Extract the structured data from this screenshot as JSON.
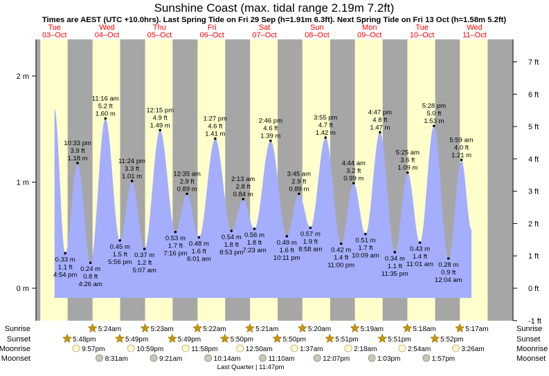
{
  "title": "Sunshine Coast (max. tidal range 2.19m 7.2ft)",
  "subtitle": "Times are AEST (UTC +10.0hrs). Last Spring Tide on Fri 29 Sep (h=1.91m 6.3ft). Next Spring Tide on Fri 13 Oct (h=1.58m 5.2ft)",
  "colors": {
    "day": "#ffffcc",
    "night": "#a6a6a6",
    "tide_fill": "#a4aefc",
    "day_label": "#ff0000",
    "sun_icon": "#c8960a",
    "moon_icon": "#fffbd0",
    "moonset_icon": "#c8c8b8"
  },
  "chart_data": {
    "type": "area",
    "y_unit_left": "m",
    "y_unit_right": "ft",
    "ylim_m": [
      -0.305,
      2.35
    ],
    "left_ticks": [
      "0 m",
      "1 m",
      "2 m"
    ],
    "right_ticks": [
      "-1 ft",
      "0 ft",
      "1 ft",
      "2 ft",
      "3 ft",
      "4 ft",
      "5 ft",
      "6 ft",
      "7 ft"
    ],
    "days": [
      {
        "dow": "Tue",
        "date": "03–Oct"
      },
      {
        "dow": "Wed",
        "date": "04–Oct"
      },
      {
        "dow": "Thu",
        "date": "05–Oct"
      },
      {
        "dow": "Fri",
        "date": "06–Oct"
      },
      {
        "dow": "Sat",
        "date": "07–Oct"
      },
      {
        "dow": "Sun",
        "date": "08–Oct"
      },
      {
        "dow": "Mon",
        "date": "09–Oct"
      },
      {
        "dow": "Tue",
        "date": "10–Oct"
      },
      {
        "dow": "Wed",
        "date": "11–Oct"
      }
    ],
    "tides": [
      {
        "time": "4:54 pm",
        "m": "0.33 m",
        "ft": "1.1 ft",
        "h": 0.33,
        "hours": 16.9,
        "low": true
      },
      {
        "time": "10:33 pm",
        "m": "1.18 m",
        "ft": "3.9 ft",
        "h": 1.18,
        "hours": 22.55,
        "low": false
      },
      {
        "time": "4:26 am",
        "m": "0.24 m",
        "ft": "0.8 ft",
        "h": 0.24,
        "hours": 28.43,
        "low": true
      },
      {
        "time": "11:16 am",
        "m": "1.60 m",
        "ft": "5.2 ft",
        "h": 1.6,
        "hours": 35.27,
        "low": false
      },
      {
        "time": "5:56 pm",
        "m": "0.45 m",
        "ft": "1.5 ft",
        "h": 0.45,
        "hours": 41.93,
        "low": true
      },
      {
        "time": "11:24 pm",
        "m": "1.01 m",
        "ft": "3.3 ft",
        "h": 1.01,
        "hours": 47.4,
        "low": false
      },
      {
        "time": "5:07 am",
        "m": "0.37 m",
        "ft": "1.2 ft",
        "h": 0.37,
        "hours": 53.12,
        "low": true
      },
      {
        "time": "12:15 pm",
        "m": "1.49 m",
        "ft": "4.9 ft",
        "h": 1.49,
        "hours": 60.25,
        "low": false
      },
      {
        "time": "7:16 pm",
        "m": "0.53 m",
        "ft": "1.7 ft",
        "h": 0.53,
        "hours": 67.27,
        "low": true
      },
      {
        "time": "12:35 am",
        "m": "0.89 m",
        "ft": "2.9 ft",
        "h": 0.89,
        "hours": 72.58,
        "low": false
      },
      {
        "time": "6:01 am",
        "m": "0.48 m",
        "ft": "1.6 ft",
        "h": 0.48,
        "hours": 78.02,
        "low": true
      },
      {
        "time": "1:27 pm",
        "m": "1.41 m",
        "ft": "4.6 ft",
        "h": 1.41,
        "hours": 85.45,
        "low": false
      },
      {
        "time": "8:53 pm",
        "m": "0.54 m",
        "ft": "1.8 ft",
        "h": 0.54,
        "hours": 92.88,
        "low": true
      },
      {
        "time": "2:13 am",
        "m": "0.84 m",
        "ft": "2.8 ft",
        "h": 0.84,
        "hours": 98.22,
        "low": false
      },
      {
        "time": "7:23 am",
        "m": "0.56 m",
        "ft": "1.8 ft",
        "h": 0.56,
        "hours": 103.38,
        "low": true
      },
      {
        "time": "2:46 pm",
        "m": "1.39 m",
        "ft": "4.6 ft",
        "h": 1.39,
        "hours": 110.77,
        "low": false
      },
      {
        "time": "10:11 pm",
        "m": "0.49 m",
        "ft": "1.6 ft",
        "h": 0.49,
        "hours": 118.18,
        "low": true
      },
      {
        "time": "3:45 am",
        "m": "0.89 m",
        "ft": "2.9 ft",
        "h": 0.89,
        "hours": 123.75,
        "low": false
      },
      {
        "time": "8:58 am",
        "m": "0.57 m",
        "ft": "1.9 ft",
        "h": 0.57,
        "hours": 128.97,
        "low": true
      },
      {
        "time": "3:55 pm",
        "m": "1.42 m",
        "ft": "4.7 ft",
        "h": 1.42,
        "hours": 135.92,
        "low": false
      },
      {
        "time": "11:00 pm",
        "m": "0.42 m",
        "ft": "1.4 ft",
        "h": 0.42,
        "hours": 143.0,
        "low": true
      },
      {
        "time": "4:44 am",
        "m": "0.99 m",
        "ft": "3.2 ft",
        "h": 0.99,
        "hours": 148.73,
        "low": false
      },
      {
        "time": "10:09 am",
        "m": "0.51 m",
        "ft": "1.7 ft",
        "h": 0.51,
        "hours": 154.15,
        "low": true
      },
      {
        "time": "4:47 pm",
        "m": "1.47 m",
        "ft": "4.8 ft",
        "h": 1.47,
        "hours": 160.78,
        "low": false
      },
      {
        "time": "11:35 pm",
        "m": "0.34 m",
        "ft": "1.1 ft",
        "h": 0.34,
        "hours": 167.58,
        "low": true
      },
      {
        "time": "5:25 am",
        "m": "1.09 m",
        "ft": "3.6 ft",
        "h": 1.09,
        "hours": 173.42,
        "low": false
      },
      {
        "time": "11:01 am",
        "m": "0.43 m",
        "ft": "1.4 ft",
        "h": 0.43,
        "hours": 179.02,
        "low": true
      },
      {
        "time": "5:28 pm",
        "m": "1.53 m",
        "ft": "5.0 ft",
        "h": 1.53,
        "hours": 185.47,
        "low": false
      },
      {
        "time": "12:04 am",
        "m": "0.28 m",
        "ft": "0.9 ft",
        "h": 0.28,
        "hours": 192.07,
        "low": true
      },
      {
        "time": "5:59 am",
        "m": "1.21 m",
        "ft": "4.0 ft",
        "h": 1.21,
        "hours": 198.0,
        "low": false
      }
    ],
    "curve_start": {
      "hours": 12.0,
      "h": 1.69
    },
    "curve_end": {
      "hours": 202.6,
      "h": 0.55
    },
    "night_spans_hours": [
      [
        -6.0,
        5.5
      ],
      [
        18.0,
        29.4
      ],
      [
        42.0,
        53.4
      ],
      [
        66.0,
        77.4
      ],
      [
        90.0,
        101.4
      ],
      [
        114.0,
        125.3
      ],
      [
        138.0,
        149.3
      ],
      [
        162.0,
        173.3
      ],
      [
        186.0,
        197.3
      ]
    ],
    "trailing_night_from_hours": 210.0
  },
  "almanac": {
    "row_labels": [
      "Sunrise",
      "Sunset",
      "Moonrise",
      "Moonset"
    ],
    "sunrise": [
      {
        "time": "5:24am",
        "hours": 29.4
      },
      {
        "time": "5:23am",
        "hours": 53.38
      },
      {
        "time": "5:22am",
        "hours": 77.37
      },
      {
        "time": "5:21am",
        "hours": 101.35
      },
      {
        "time": "5:20am",
        "hours": 125.33
      },
      {
        "time": "5:19am",
        "hours": 149.32
      },
      {
        "time": "5:18am",
        "hours": 173.3
      },
      {
        "time": "5:17am",
        "hours": 197.28
      }
    ],
    "sunset": [
      {
        "time": "5:48pm",
        "hours": 17.8
      },
      {
        "time": "5:49pm",
        "hours": 41.82
      },
      {
        "time": "5:49pm",
        "hours": 65.82
      },
      {
        "time": "5:50pm",
        "hours": 89.83
      },
      {
        "time": "5:50pm",
        "hours": 113.83
      },
      {
        "time": "5:51pm",
        "hours": 137.85
      },
      {
        "time": "5:51pm",
        "hours": 161.85
      },
      {
        "time": "5:52pm",
        "hours": 185.87
      }
    ],
    "moonrise": [
      {
        "time": "9:57pm",
        "hours": 21.95
      },
      {
        "time": "10:59pm",
        "hours": 46.98
      },
      {
        "time": "11:58pm",
        "hours": 71.97
      },
      {
        "time": "12:50am",
        "hours": 96.83
      },
      {
        "time": "1:37am",
        "hours": 121.62
      },
      {
        "time": "2:18am",
        "hours": 146.3
      },
      {
        "time": "2:54am",
        "hours": 170.9
      },
      {
        "time": "3:26am",
        "hours": 195.43
      }
    ],
    "moonset": [
      {
        "time": "8:31am",
        "hours": 32.52
      },
      {
        "time": "9:21am",
        "hours": 57.35
      },
      {
        "time": "10:14am",
        "hours": 82.23
      },
      {
        "time": "11:10am",
        "hours": 107.17
      },
      {
        "time": "12:07pm",
        "hours": 132.12
      },
      {
        "time": "1:03pm",
        "hours": 157.05
      },
      {
        "time": "1:57pm",
        "hours": 181.95
      }
    ],
    "moon_phase_note": "Last Quarter | 11:47pm"
  }
}
